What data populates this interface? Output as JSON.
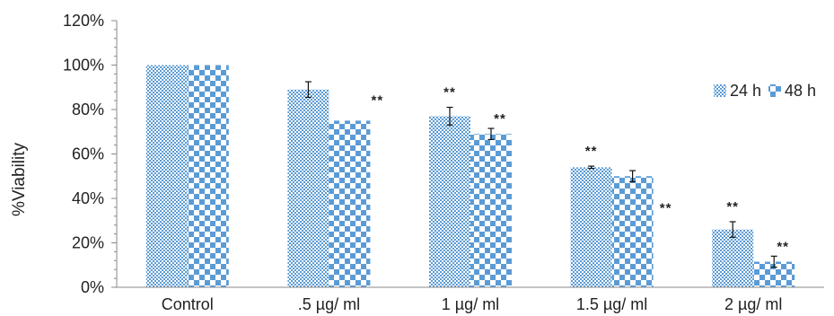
{
  "chart_data": {
    "type": "bar",
    "title": "",
    "xlabel": "",
    "ylabel": "%Viability",
    "ylim": [
      0,
      120
    ],
    "y_ticks": [
      "0%",
      "20%",
      "40%",
      "60%",
      "80%",
      "100%",
      "120%"
    ],
    "categories": [
      "Control",
      ".5 µg/ ml",
      "1 µg/ ml",
      "1.5 µg/ ml",
      "2  µg/ ml"
    ],
    "series": [
      {
        "name": "24 h",
        "values": [
          100,
          89,
          77,
          54,
          26
        ],
        "errors": [
          0,
          3.5,
          4,
          0.5,
          3.5
        ],
        "significance": [
          "",
          "",
          "**",
          "**",
          "**"
        ],
        "color": "#5b9bd5",
        "pattern": "small-checker"
      },
      {
        "name": "48 h",
        "values": [
          100,
          75,
          69,
          50,
          11.5
        ],
        "errors": [
          0,
          0,
          2.5,
          2.5,
          2.5
        ],
        "significance": [
          "",
          "**",
          "**",
          "**",
          "**"
        ],
        "color": "#5b9bd5",
        "pattern": "large-checker"
      }
    ],
    "grid": false,
    "legend_position": "right"
  }
}
